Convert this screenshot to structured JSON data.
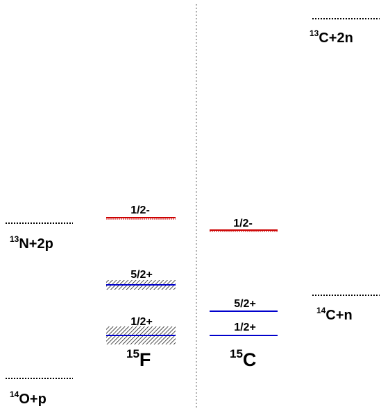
{
  "colors": {
    "unbound_level": "#cc0000",
    "bound_level": "#0000cc",
    "threshold": "#000000",
    "divider": "#7a7a7a"
  },
  "thresholds": {
    "c13_2n": {
      "mass": "13",
      "label": "C+2n"
    },
    "n13_2p": {
      "mass": "13",
      "label": "N+2p"
    },
    "c14_n": {
      "mass": "14",
      "label": "C+n"
    },
    "o14_p": {
      "mass": "14",
      "label": "O+p"
    }
  },
  "nuclei": {
    "f15": {
      "mass": "15",
      "symbol": "F",
      "levels": [
        {
          "label": "1/2-",
          "color_key": "unbound_level",
          "hatched": false
        },
        {
          "label": "5/2+",
          "color_key": "bound_level",
          "hatched": true
        },
        {
          "label": "1/2+",
          "color_key": "bound_level",
          "hatched": true
        }
      ]
    },
    "c15": {
      "mass": "15",
      "symbol": "C",
      "levels": [
        {
          "label": "1/2-",
          "color_key": "unbound_level",
          "hatched": false
        },
        {
          "label": "5/2+",
          "color_key": "bound_level",
          "hatched": false
        },
        {
          "label": "1/2+",
          "color_key": "bound_level",
          "hatched": false
        }
      ]
    }
  }
}
